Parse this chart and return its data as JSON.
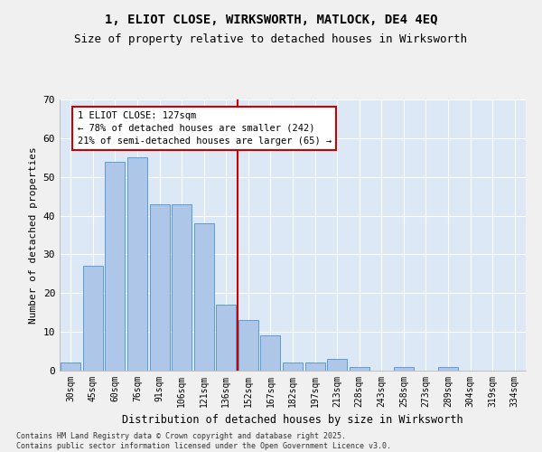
{
  "title": "1, ELIOT CLOSE, WIRKSWORTH, MATLOCK, DE4 4EQ",
  "subtitle": "Size of property relative to detached houses in Wirksworth",
  "xlabel": "Distribution of detached houses by size in Wirksworth",
  "ylabel": "Number of detached properties",
  "categories": [
    "30sqm",
    "45sqm",
    "60sqm",
    "76sqm",
    "91sqm",
    "106sqm",
    "121sqm",
    "136sqm",
    "152sqm",
    "167sqm",
    "182sqm",
    "197sqm",
    "213sqm",
    "228sqm",
    "243sqm",
    "258sqm",
    "273sqm",
    "289sqm",
    "304sqm",
    "319sqm",
    "334sqm"
  ],
  "values": [
    2,
    27,
    54,
    55,
    43,
    43,
    38,
    17,
    13,
    9,
    2,
    2,
    3,
    1,
    0,
    1,
    0,
    1,
    0,
    0,
    0
  ],
  "bar_color": "#aec6e8",
  "bar_edge_color": "#5b9bd5",
  "vline_pos": 7.5,
  "annotation_line1": "1 ELIOT CLOSE: 127sqm",
  "annotation_line2": "← 78% of detached houses are smaller (242)",
  "annotation_line3": "21% of semi-detached houses are larger (65) →",
  "annotation_box_color": "#ffffff",
  "annotation_box_edge": "#cc0000",
  "vline_color": "#cc0000",
  "ylim": [
    0,
    70
  ],
  "yticks": [
    0,
    10,
    20,
    30,
    40,
    50,
    60,
    70
  ],
  "bg_color": "#dce8f5",
  "fig_bg_color": "#f0f0f0",
  "footer_line1": "Contains HM Land Registry data © Crown copyright and database right 2025.",
  "footer_line2": "Contains public sector information licensed under the Open Government Licence v3.0.",
  "title_fontsize": 10,
  "subtitle_fontsize": 9,
  "axis_label_fontsize": 8,
  "tick_fontsize": 7,
  "annotation_fontsize": 7.5,
  "footer_fontsize": 6
}
